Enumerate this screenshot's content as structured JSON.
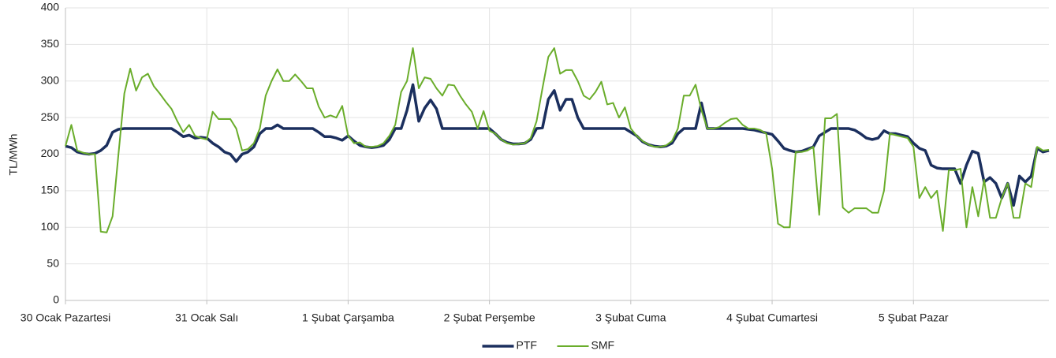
{
  "chart_data": {
    "type": "line",
    "y_label": "TL/MWh",
    "categories": [
      "30 Ocak Pazartesi",
      null,
      null,
      null,
      null,
      null,
      null,
      null,
      null,
      null,
      null,
      null,
      null,
      null,
      null,
      null,
      null,
      null,
      null,
      null,
      null,
      null,
      null,
      null,
      "31 Ocak Salı",
      null,
      null,
      null,
      null,
      null,
      null,
      null,
      null,
      null,
      null,
      null,
      null,
      null,
      null,
      null,
      null,
      null,
      null,
      null,
      null,
      null,
      null,
      null,
      "1 Şubat Çarşamba",
      null,
      null,
      null,
      null,
      null,
      null,
      null,
      null,
      null,
      null,
      null,
      null,
      null,
      null,
      null,
      null,
      null,
      null,
      null,
      null,
      null,
      null,
      null,
      "2 Şubat Perşembe",
      null,
      null,
      null,
      null,
      null,
      null,
      null,
      null,
      null,
      null,
      null,
      null,
      null,
      null,
      null,
      null,
      null,
      null,
      null,
      null,
      null,
      null,
      null,
      "3 Şubat Cuma",
      null,
      null,
      null,
      null,
      null,
      null,
      null,
      null,
      null,
      null,
      null,
      null,
      null,
      null,
      null,
      null,
      null,
      null,
      null,
      null,
      null,
      null,
      null,
      "4 Şubat Cumartesi",
      null,
      null,
      null,
      null,
      null,
      null,
      null,
      null,
      null,
      null,
      null,
      null,
      null,
      null,
      null,
      null,
      null,
      null,
      null,
      null,
      null,
      null,
      null,
      "5 Şubat Pazar",
      null,
      null,
      null,
      null,
      null,
      null,
      null,
      null,
      null,
      null,
      null,
      null,
      null,
      null,
      null,
      null,
      null,
      null,
      null,
      null,
      null,
      null,
      null
    ],
    "series": [
      {
        "name": "PTF",
        "color": "#1b2f5e",
        "width": 3.5,
        "values": [
          211,
          209,
          203,
          201,
          200,
          201,
          205,
          212,
          230,
          234,
          235,
          235,
          235,
          235,
          235,
          235,
          235,
          235,
          235,
          230,
          224,
          226,
          222,
          223,
          222,
          215,
          210,
          203,
          200,
          190,
          200,
          203,
          210,
          228,
          235,
          235,
          240,
          235,
          235,
          235,
          235,
          235,
          235,
          230,
          224,
          224,
          222,
          219,
          225,
          218,
          212,
          210,
          209,
          210,
          212,
          220,
          235,
          235,
          260,
          295,
          245,
          263,
          274,
          262,
          235,
          235,
          235,
          235,
          235,
          235,
          235,
          235,
          235,
          228,
          220,
          216,
          214,
          214,
          215,
          220,
          235,
          236,
          275,
          287,
          260,
          275,
          275,
          250,
          235,
          235,
          235,
          235,
          235,
          235,
          235,
          235,
          230,
          225,
          217,
          213,
          211,
          210,
          211,
          215,
          228,
          235,
          235,
          235,
          270,
          235,
          235,
          235,
          235,
          235,
          235,
          235,
          234,
          233,
          231,
          229,
          227,
          218,
          208,
          205,
          203,
          204,
          207,
          210,
          225,
          230,
          235,
          235,
          235,
          235,
          233,
          228,
          222,
          220,
          222,
          232,
          228,
          228,
          226,
          224,
          215,
          208,
          205,
          185,
          181,
          180,
          180,
          180,
          160,
          185,
          204,
          201,
          162,
          168,
          160,
          140,
          160,
          130,
          170,
          162,
          170,
          208,
          203,
          205
        ]
      },
      {
        "name": "SMF",
        "color": "#6aad2b",
        "width": 2,
        "values": [
          211,
          240,
          205,
          202,
          200,
          200,
          94,
          93,
          115,
          200,
          283,
          317,
          287,
          305,
          310,
          293,
          283,
          272,
          262,
          245,
          230,
          240,
          225,
          222,
          220,
          258,
          248,
          248,
          248,
          235,
          205,
          207,
          215,
          235,
          280,
          300,
          316,
          300,
          300,
          309,
          300,
          290,
          290,
          265,
          250,
          253,
          250,
          266,
          225,
          215,
          216,
          210,
          210,
          211,
          215,
          225,
          240,
          285,
          300,
          345,
          290,
          305,
          303,
          290,
          280,
          295,
          294,
          280,
          268,
          258,
          235,
          259,
          232,
          228,
          220,
          215,
          213,
          214,
          215,
          222,
          245,
          290,
          333,
          345,
          310,
          315,
          315,
          300,
          280,
          275,
          285,
          299,
          268,
          270,
          250,
          264,
          235,
          225,
          218,
          213,
          210,
          210,
          212,
          218,
          235,
          280,
          280,
          295,
          260,
          235,
          235,
          237,
          243,
          248,
          249,
          240,
          235,
          235,
          233,
          228,
          180,
          105,
          100,
          100,
          203,
          203,
          205,
          210,
          117,
          249,
          249,
          255,
          127,
          120,
          126,
          126,
          126,
          120,
          120,
          150,
          228,
          226,
          224,
          222,
          210,
          140,
          155,
          140,
          150,
          95,
          178,
          178,
          180,
          100,
          155,
          115,
          165,
          113,
          113,
          140,
          160,
          113,
          113,
          160,
          155,
          210,
          205,
          206
        ]
      }
    ],
    "ylim": [
      0,
      400
    ],
    "yticks": [
      0,
      50,
      100,
      150,
      200,
      250,
      300,
      350,
      400
    ],
    "grid": true,
    "legend": "bottom"
  }
}
